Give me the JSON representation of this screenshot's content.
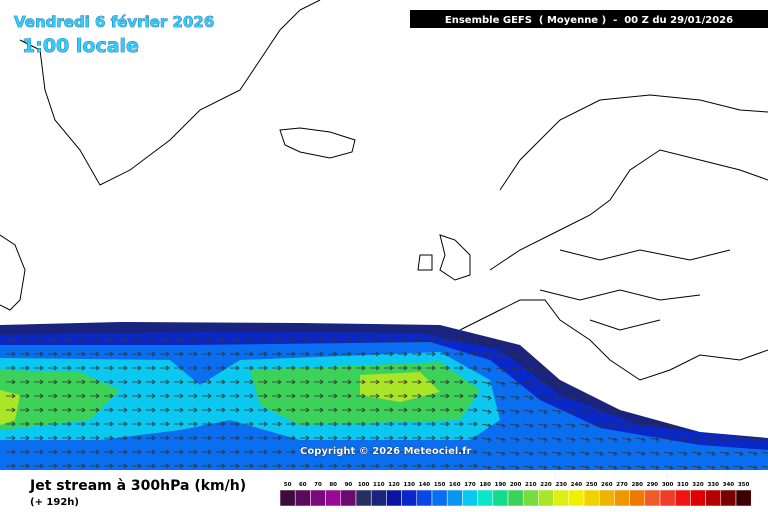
{
  "title": "Vendredi 6 février 2026",
  "subtitle": "1:00 locale",
  "header": "Ensemble GEFS  ( Moyenne )  -  00 Z du 29/01/2026",
  "copyright": "Copyright © 2026 Meteociel.fr",
  "caption": "Jet stream à 300hPa (km/h)",
  "lead_time": "(+ 192h)",
  "legend": [
    {
      "value": 50,
      "color": "#3c0a3c"
    },
    {
      "value": 60,
      "color": "#5a0a5a"
    },
    {
      "value": 70,
      "color": "#7a0a7a"
    },
    {
      "value": 80,
      "color": "#960a96"
    },
    {
      "value": 90,
      "color": "#6e0a6e"
    },
    {
      "value": 100,
      "color": "#2a2e5e"
    },
    {
      "value": 110,
      "color": "#1a237e"
    },
    {
      "value": 120,
      "color": "#0a14a0"
    },
    {
      "value": 130,
      "color": "#0a28c8"
    },
    {
      "value": 140,
      "color": "#0a46e6"
    },
    {
      "value": 150,
      "color": "#0a6ef0"
    },
    {
      "value": 160,
      "color": "#0a96f0"
    },
    {
      "value": 170,
      "color": "#0ac8f0"
    },
    {
      "value": 180,
      "color": "#0ae6c8"
    },
    {
      "value": 190,
      "color": "#14dc8c"
    },
    {
      "value": 200,
      "color": "#3cd25a"
    },
    {
      "value": 210,
      "color": "#78dc3c"
    },
    {
      "value": 220,
      "color": "#aae628"
    },
    {
      "value": 230,
      "color": "#dcf014"
    },
    {
      "value": 240,
      "color": "#f0f000"
    },
    {
      "value": 250,
      "color": "#f0d200"
    },
    {
      "value": 260,
      "color": "#f0b400"
    },
    {
      "value": 270,
      "color": "#f09600"
    },
    {
      "value": 280,
      "color": "#f07800"
    },
    {
      "value": 290,
      "color": "#f05a28"
    },
    {
      "value": 300,
      "color": "#f03c28"
    },
    {
      "value": 310,
      "color": "#f01414"
    },
    {
      "value": 320,
      "color": "#dc0000"
    },
    {
      "value": 330,
      "color": "#b40000"
    },
    {
      "value": 340,
      "color": "#780000"
    },
    {
      "value": 350,
      "color": "#3c0000"
    }
  ]
}
